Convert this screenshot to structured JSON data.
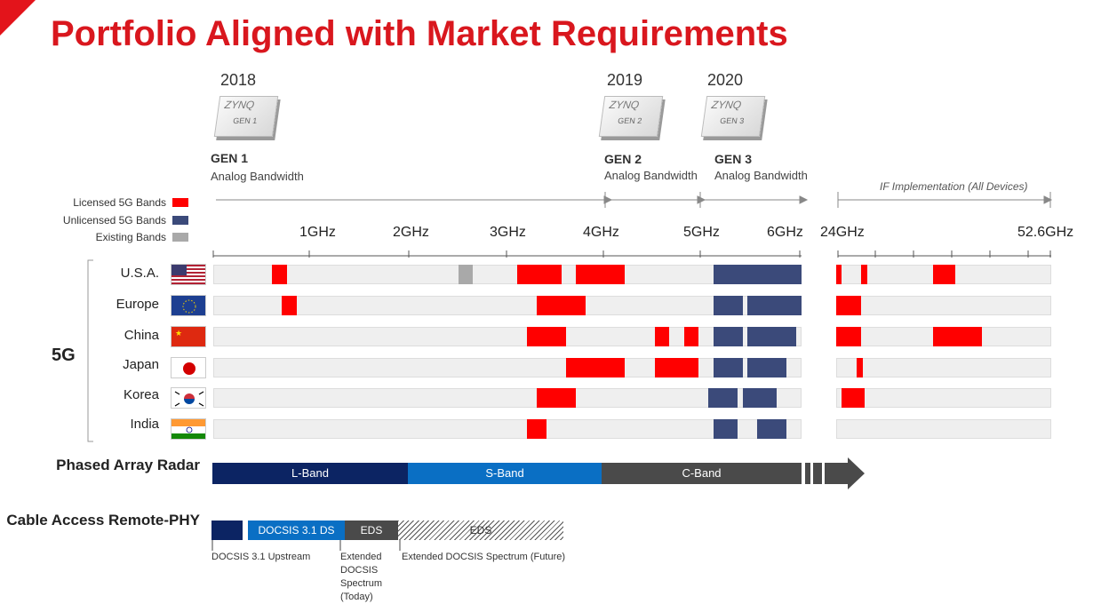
{
  "title": "Portfolio Aligned with Market Requirements",
  "colors": {
    "licensed": "#ff0000",
    "unlicensed": "#3b4a7a",
    "existing": "#a9a9a9",
    "title": "#d9171e"
  },
  "generations": [
    {
      "year": "2018",
      "chip_brand": "ZYNQ",
      "chip_label": "GEN 1",
      "name": "GEN 1",
      "desc": "Analog Bandwidth"
    },
    {
      "year": "2019",
      "chip_brand": "ZYNQ",
      "chip_label": "GEN 2",
      "name": "GEN 2",
      "desc": "Analog Bandwidth"
    },
    {
      "year": "2020",
      "chip_brand": "ZYNQ",
      "chip_label": "GEN 3",
      "name": "GEN 3",
      "desc": "Analog Bandwidth"
    }
  ],
  "if_label": "IF Implementation (All Devices)",
  "legend": [
    {
      "label": "Licensed 5G Bands",
      "color": "#ff0000"
    },
    {
      "label": "Unlicensed 5G Bands",
      "color": "#3b4a7a"
    },
    {
      "label": "Existing Bands",
      "color": "#a9a9a9"
    }
  ],
  "freq_ticks": [
    "1GHz",
    "2GHz",
    "3GHz",
    "4GHz",
    "5GHz",
    "6GHz",
    "24GHz",
    "52.6GHz"
  ],
  "section_5g": "5G",
  "countries": [
    {
      "name": "U.S.A.",
      "flag": "us-flag"
    },
    {
      "name": "Europe",
      "flag": "eu-flag"
    },
    {
      "name": "China",
      "flag": "cn-flag"
    },
    {
      "name": "Japan",
      "flag": "jp-flag"
    },
    {
      "name": "Korea",
      "flag": "kr-flag"
    },
    {
      "name": "India",
      "flag": "in-flag"
    }
  ],
  "bands": [
    [
      {
        "from": 0.6,
        "to": 0.75,
        "kind": "licensed"
      },
      {
        "from": 2.5,
        "to": 2.65,
        "kind": "existing"
      },
      {
        "from": 3.1,
        "to": 3.55,
        "kind": "licensed"
      },
      {
        "from": 3.7,
        "to": 4.2,
        "kind": "licensed"
      },
      {
        "from": 5.1,
        "to": 6.0,
        "kind": "unlicensed"
      }
    ],
    [
      {
        "from": 0.7,
        "to": 0.85,
        "kind": "licensed"
      },
      {
        "from": 3.3,
        "to": 3.8,
        "kind": "licensed"
      },
      {
        "from": 5.1,
        "to": 5.4,
        "kind": "unlicensed"
      },
      {
        "from": 5.45,
        "to": 6.0,
        "kind": "unlicensed"
      }
    ],
    [
      {
        "from": 3.2,
        "to": 3.6,
        "kind": "licensed"
      },
      {
        "from": 4.5,
        "to": 4.65,
        "kind": "licensed"
      },
      {
        "from": 4.8,
        "to": 4.95,
        "kind": "licensed"
      },
      {
        "from": 5.1,
        "to": 5.4,
        "kind": "unlicensed"
      },
      {
        "from": 5.45,
        "to": 5.95,
        "kind": "unlicensed"
      }
    ],
    [
      {
        "from": 3.6,
        "to": 4.2,
        "kind": "licensed"
      },
      {
        "from": 4.5,
        "to": 4.95,
        "kind": "licensed"
      },
      {
        "from": 5.1,
        "to": 5.4,
        "kind": "unlicensed"
      },
      {
        "from": 5.45,
        "to": 5.85,
        "kind": "unlicensed"
      }
    ],
    [
      {
        "from": 3.3,
        "to": 3.7,
        "kind": "licensed"
      },
      {
        "from": 5.05,
        "to": 5.35,
        "kind": "unlicensed"
      },
      {
        "from": 5.4,
        "to": 5.75,
        "kind": "unlicensed"
      }
    ],
    [
      {
        "from": 3.2,
        "to": 3.4,
        "kind": "licensed"
      },
      {
        "from": 5.1,
        "to": 5.35,
        "kind": "unlicensed"
      },
      {
        "from": 5.55,
        "to": 5.85,
        "kind": "unlicensed"
      }
    ]
  ],
  "mmwave_bands": [
    [
      {
        "from": 24.25,
        "to": 24.45,
        "kind": "licensed"
      },
      {
        "from": 27.5,
        "to": 28.35,
        "kind": "licensed"
      },
      {
        "from": 37.0,
        "to": 40.0,
        "kind": "licensed"
      }
    ],
    [
      {
        "from": 24.25,
        "to": 27.5,
        "kind": "licensed"
      }
    ],
    [
      {
        "from": 24.25,
        "to": 27.5,
        "kind": "licensed"
      },
      {
        "from": 37.0,
        "to": 43.5,
        "kind": "licensed"
      }
    ],
    [
      {
        "from": 27.0,
        "to": 27.8,
        "kind": "licensed"
      }
    ],
    [
      {
        "from": 25.0,
        "to": 28.0,
        "kind": "licensed"
      }
    ],
    []
  ],
  "phased_array": {
    "label": "Phased Array Radar",
    "bands": [
      {
        "label": "L-Band",
        "color": "#0c2463"
      },
      {
        "label": "S-Band",
        "color": "#0a6fc4"
      },
      {
        "label": "C-Band",
        "color": "#4a4a4a"
      }
    ]
  },
  "cable": {
    "label": "Cable Access Remote-PHY",
    "segments": [
      {
        "label": "",
        "color": "#0c2463"
      },
      {
        "label": "DOCSIS 3.1 DS",
        "color": "#0a6fc4"
      },
      {
        "label": "EDS",
        "color": "#4a4a4a"
      },
      {
        "label": "EDS",
        "color": "hatched"
      }
    ],
    "notes": [
      "DOCSIS 3.1 Upstream",
      "Extended DOCSIS Spectrum (Today)",
      "Extended DOCSIS Spectrum (Future)"
    ]
  }
}
